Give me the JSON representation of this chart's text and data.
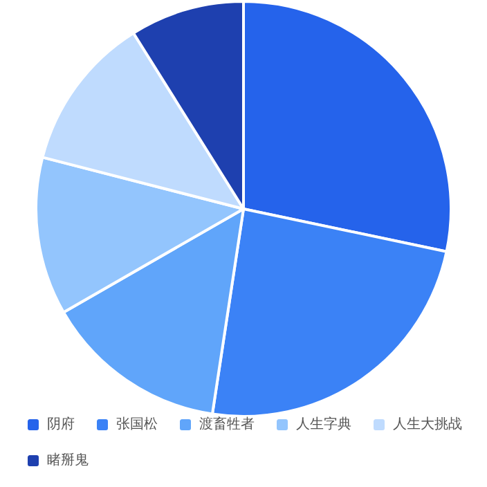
{
  "chart_data": {
    "type": "pie",
    "categories": [
      "阴府",
      "张国松",
      "渡畜牲者",
      "人生字典",
      "人生大挑战",
      "睹掰鬼"
    ],
    "values": [
      28.3,
      24.1,
      14.3,
      12.3,
      12.1,
      8.9
    ],
    "colors": [
      "#2563eb",
      "#3b82f6",
      "#60a5fa",
      "#93c5fd",
      "#bfdbfe",
      "#1e40af"
    ],
    "legend": "bottom"
  }
}
